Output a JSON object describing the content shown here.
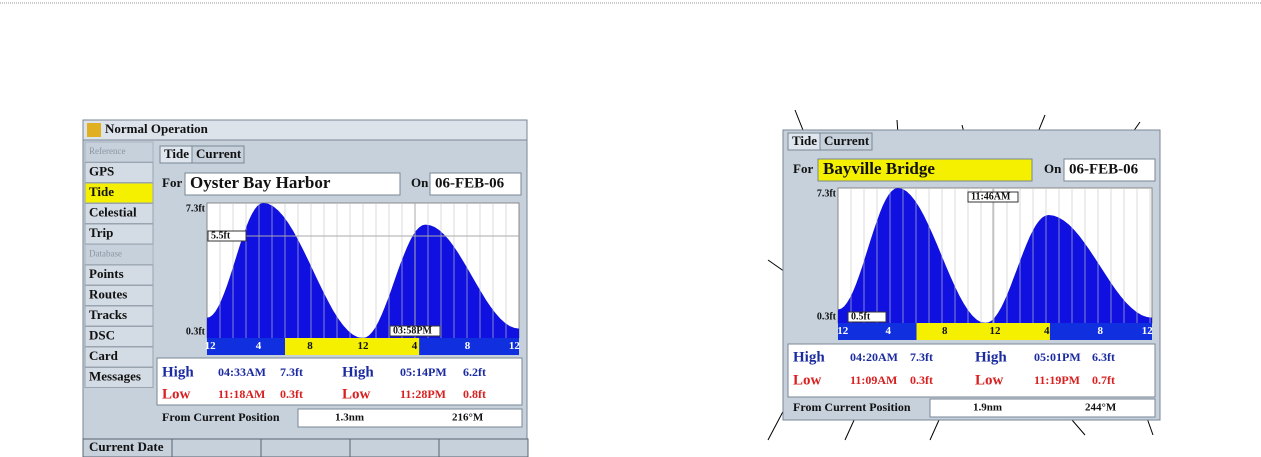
{
  "left_screen": {
    "title": "Normal Operation",
    "menu": [
      {
        "heading": "Reference",
        "items": [
          "GPS",
          "Tide",
          "Celestial",
          "Trip"
        ]
      },
      {
        "heading": "Database",
        "items": [
          "Points",
          "Routes",
          "Tracks",
          "DSC",
          "Card",
          "Messages"
        ]
      }
    ],
    "tabs": [
      "Tide",
      "Current"
    ],
    "for_label": "For",
    "location": "Oyster Bay Harbor",
    "on_label": "On",
    "date": "06-FEB-06",
    "chart": {
      "max_label": "7.3ft",
      "min_label": "0.3ft",
      "cursor_height": "5.5ft",
      "cursor_time": "03:58PM",
      "hours": [
        "12",
        "4",
        "8",
        "12",
        "4",
        "8",
        "12"
      ]
    },
    "tides": [
      [
        "High",
        "04:33AM",
        "7.3ft",
        "High",
        "05:14PM",
        "6.2ft"
      ],
      [
        "Low",
        "11:18AM",
        "0.3ft",
        "Low",
        "11:28PM",
        "0.8ft"
      ]
    ],
    "position": {
      "label": "From Current Position",
      "distance": "1.3nm",
      "bearing": "216°M"
    },
    "footer": [
      "Current Date"
    ]
  },
  "right_screen": {
    "tabs": [
      "Tide",
      "Current"
    ],
    "for_label": "For",
    "location": "Bayville Bridge",
    "on_label": "On",
    "date": "06-FEB-06",
    "chart": {
      "max_label": "7.3ft",
      "min_label": "0.3ft",
      "cursor_height": "0.5ft",
      "cursor_time": "11:46AM",
      "hours": [
        "12",
        "4",
        "8",
        "12",
        "4",
        "8",
        "12"
      ]
    },
    "tides": [
      [
        "High",
        "04:20AM",
        "7.3ft",
        "High",
        "05:01PM",
        "6.3ft"
      ],
      [
        "Low",
        "11:09AM",
        "0.3ft",
        "Low",
        "11:19PM",
        "0.7ft"
      ]
    ],
    "position": {
      "label": "From Current Position",
      "distance": "1.9nm",
      "bearing": "244°M"
    }
  }
}
